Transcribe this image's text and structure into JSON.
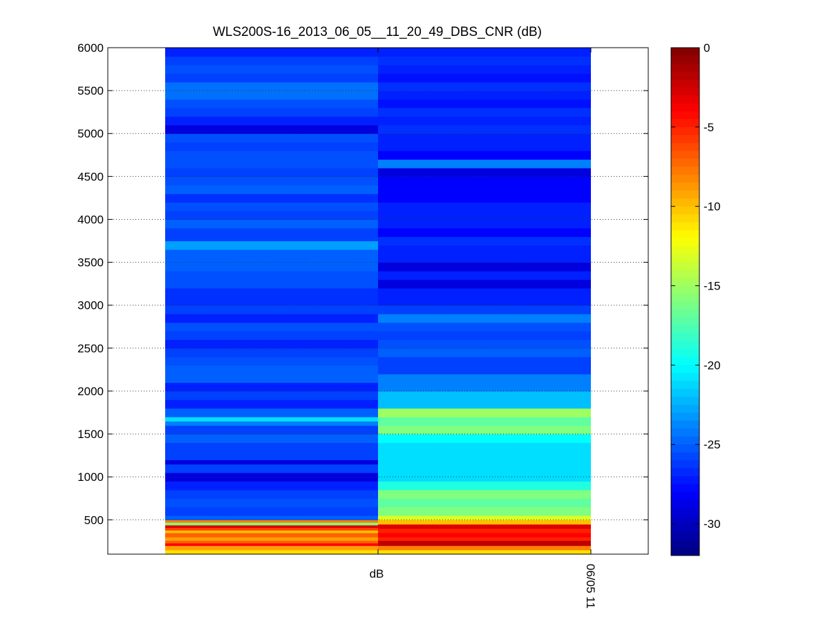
{
  "chart_data": {
    "type": "heatmap",
    "title": "WLS200S-16_2013_06_05__11_20_49_DBS_CNR (dB)",
    "xlabel": "",
    "ylabel": "",
    "ylim": [
      100,
      6000
    ],
    "yticks": [
      500,
      1000,
      1500,
      2000,
      2500,
      3000,
      3500,
      4000,
      4500,
      5000,
      5500,
      6000
    ],
    "ygrid": true,
    "xtick_labels": [
      {
        "label": "dB",
        "column": 1,
        "rotated": false
      },
      {
        "label": "06/05 11",
        "column": 2,
        "rotated": true
      }
    ],
    "colorbar": {
      "clim": [
        -32,
        0
      ],
      "ticks": [
        0,
        -5,
        -10,
        -15,
        -20,
        -25,
        -30
      ],
      "colormap": "jet"
    },
    "columns": [
      {
        "bands": [
          [
            100,
            150,
            -11
          ],
          [
            150,
            200,
            -9
          ],
          [
            200,
            230,
            -4
          ],
          [
            230,
            260,
            -7
          ],
          [
            260,
            300,
            -9
          ],
          [
            300,
            350,
            -7
          ],
          [
            350,
            380,
            -10
          ],
          [
            380,
            410,
            -6
          ],
          [
            410,
            440,
            -3
          ],
          [
            440,
            470,
            -16
          ],
          [
            470,
            500,
            -8
          ],
          [
            500,
            550,
            -25
          ],
          [
            550,
            650,
            -26
          ],
          [
            650,
            750,
            -25.5
          ],
          [
            750,
            850,
            -26
          ],
          [
            850,
            950,
            -27
          ],
          [
            950,
            1050,
            -29
          ],
          [
            1050,
            1150,
            -26
          ],
          [
            1150,
            1200,
            -29
          ],
          [
            1200,
            1300,
            -26
          ],
          [
            1300,
            1400,
            -26
          ],
          [
            1400,
            1500,
            -25
          ],
          [
            1500,
            1600,
            -26
          ],
          [
            1600,
            1650,
            -24
          ],
          [
            1650,
            1700,
            -21
          ],
          [
            1700,
            1800,
            -25
          ],
          [
            1800,
            1900,
            -27
          ],
          [
            1900,
            2000,
            -26
          ],
          [
            2000,
            2100,
            -27
          ],
          [
            2100,
            2300,
            -25
          ],
          [
            2300,
            2400,
            -25.5
          ],
          [
            2400,
            2500,
            -26
          ],
          [
            2500,
            2600,
            -27
          ],
          [
            2600,
            2700,
            -26
          ],
          [
            2700,
            2800,
            -25.5
          ],
          [
            2800,
            2900,
            -27
          ],
          [
            2900,
            3000,
            -26
          ],
          [
            3000,
            3200,
            -26.5
          ],
          [
            3200,
            3400,
            -25.5
          ],
          [
            3400,
            3550,
            -25
          ],
          [
            3550,
            3650,
            -25
          ],
          [
            3650,
            3750,
            -23
          ],
          [
            3750,
            3900,
            -26
          ],
          [
            3900,
            4000,
            -25
          ],
          [
            4000,
            4100,
            -26
          ],
          [
            4100,
            4200,
            -25.5
          ],
          [
            4200,
            4300,
            -26.5
          ],
          [
            4300,
            4400,
            -25
          ],
          [
            4400,
            4500,
            -25.5
          ],
          [
            4500,
            4600,
            -26
          ],
          [
            4600,
            4800,
            -25.5
          ],
          [
            4800,
            4900,
            -26
          ],
          [
            4900,
            5000,
            -25.5
          ],
          [
            5000,
            5100,
            -29
          ],
          [
            5100,
            5200,
            -27
          ],
          [
            5200,
            5300,
            -26
          ],
          [
            5300,
            5400,
            -25.5
          ],
          [
            5400,
            5600,
            -24.5
          ],
          [
            5600,
            5700,
            -26
          ],
          [
            5700,
            5800,
            -25.5
          ],
          [
            5800,
            5900,
            -26
          ],
          [
            5900,
            6000,
            -27
          ]
        ]
      },
      {
        "bands": [
          [
            100,
            150,
            -11
          ],
          [
            150,
            200,
            -8
          ],
          [
            200,
            260,
            -2
          ],
          [
            260,
            300,
            -5
          ],
          [
            300,
            350,
            -4
          ],
          [
            350,
            400,
            -5
          ],
          [
            400,
            450,
            -3
          ],
          [
            450,
            500,
            -10
          ],
          [
            500,
            550,
            -13
          ],
          [
            550,
            650,
            -16
          ],
          [
            650,
            750,
            -17
          ],
          [
            750,
            850,
            -16
          ],
          [
            850,
            950,
            -19
          ],
          [
            950,
            1200,
            -21
          ],
          [
            1200,
            1400,
            -21
          ],
          [
            1400,
            1500,
            -20
          ],
          [
            1500,
            1600,
            -16
          ],
          [
            1600,
            1700,
            -17
          ],
          [
            1700,
            1800,
            -15
          ],
          [
            1800,
            1900,
            -22
          ],
          [
            1900,
            2000,
            -22
          ],
          [
            2000,
            2100,
            -24
          ],
          [
            2100,
            2200,
            -24
          ],
          [
            2200,
            2400,
            -26
          ],
          [
            2400,
            2500,
            -25
          ],
          [
            2500,
            2600,
            -25.5
          ],
          [
            2600,
            2700,
            -26
          ],
          [
            2700,
            2800,
            -25.5
          ],
          [
            2800,
            2900,
            -24
          ],
          [
            2900,
            3000,
            -26
          ],
          [
            3000,
            3100,
            -27
          ],
          [
            3100,
            3200,
            -27
          ],
          [
            3200,
            3300,
            -29
          ],
          [
            3300,
            3400,
            -27
          ],
          [
            3400,
            3500,
            -29
          ],
          [
            3500,
            3600,
            -27
          ],
          [
            3600,
            3700,
            -27
          ],
          [
            3700,
            3800,
            -26.5
          ],
          [
            3800,
            3900,
            -28
          ],
          [
            3900,
            4000,
            -27
          ],
          [
            4000,
            4100,
            -27
          ],
          [
            4100,
            4200,
            -27
          ],
          [
            4200,
            4500,
            -28
          ],
          [
            4500,
            4600,
            -29
          ],
          [
            4600,
            4700,
            -24
          ],
          [
            4700,
            4800,
            -28
          ],
          [
            4800,
            4900,
            -27
          ],
          [
            4900,
            5000,
            -27
          ],
          [
            5000,
            5100,
            -26.5
          ],
          [
            5100,
            5200,
            -27
          ],
          [
            5200,
            5300,
            -26.5
          ],
          [
            5300,
            5400,
            -27.5
          ],
          [
            5400,
            5500,
            -27
          ],
          [
            5500,
            5600,
            -26.5
          ],
          [
            5600,
            5700,
            -27.5
          ],
          [
            5700,
            5800,
            -27
          ],
          [
            5800,
            5900,
            -26.5
          ],
          [
            5900,
            6000,
            -27
          ]
        ]
      }
    ]
  }
}
